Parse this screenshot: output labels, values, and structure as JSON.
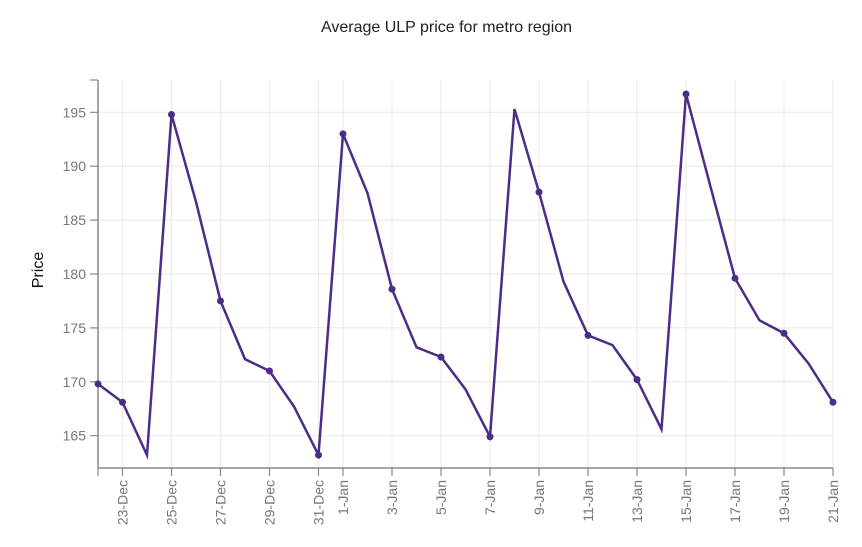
{
  "chart_data": {
    "type": "line",
    "title": "Average ULP price for metro region",
    "xlabel": "",
    "ylabel": "Price",
    "ylim": [
      162,
      198
    ],
    "yticks": [
      165,
      170,
      175,
      180,
      185,
      190,
      195
    ],
    "grid": true,
    "legend": "none",
    "line_color": "#4b2d87",
    "grid_color": "#ececec",
    "axis_color": "#888888",
    "x": [
      "22-Dec",
      "23-Dec",
      "24-Dec",
      "25-Dec",
      "26-Dec",
      "27-Dec",
      "28-Dec",
      "29-Dec",
      "30-Dec",
      "31-Dec",
      "1-Jan",
      "2-Jan",
      "3-Jan",
      "4-Jan",
      "5-Jan",
      "6-Jan",
      "7-Jan",
      "8-Jan",
      "9-Jan",
      "10-Jan",
      "11-Jan",
      "12-Jan",
      "13-Jan",
      "14-Jan",
      "15-Jan",
      "16-Jan",
      "17-Jan",
      "18-Jan",
      "19-Jan",
      "20-Jan",
      "21-Jan"
    ],
    "xtick_labels": [
      "23-Dec",
      "25-Dec",
      "27-Dec",
      "29-Dec",
      "31-Dec",
      "1-Jan",
      "3-Jan",
      "5-Jan",
      "7-Jan",
      "9-Jan",
      "11-Jan",
      "13-Jan",
      "15-Jan",
      "17-Jan",
      "19-Jan",
      "21-Jan"
    ],
    "series": [
      {
        "name": "Average ULP price",
        "values": [
          169.8,
          168.1,
          163.2,
          194.8,
          186.7,
          177.5,
          172.1,
          171.0,
          167.7,
          163.2,
          193.0,
          187.5,
          178.6,
          173.2,
          172.3,
          169.3,
          164.9,
          195.3,
          187.6,
          179.3,
          174.3,
          173.4,
          170.2,
          165.6,
          196.7,
          188.1,
          179.6,
          175.7,
          174.5,
          171.7,
          168.1
        ],
        "markers": [
          "22-Dec",
          "23-Dec",
          "25-Dec",
          "27-Dec",
          "29-Dec",
          "31-Dec",
          "1-Jan",
          "3-Jan",
          "5-Jan",
          "7-Jan",
          "9-Jan",
          "11-Jan",
          "13-Jan",
          "15-Jan",
          "17-Jan",
          "19-Jan",
          "21-Jan"
        ]
      }
    ]
  }
}
